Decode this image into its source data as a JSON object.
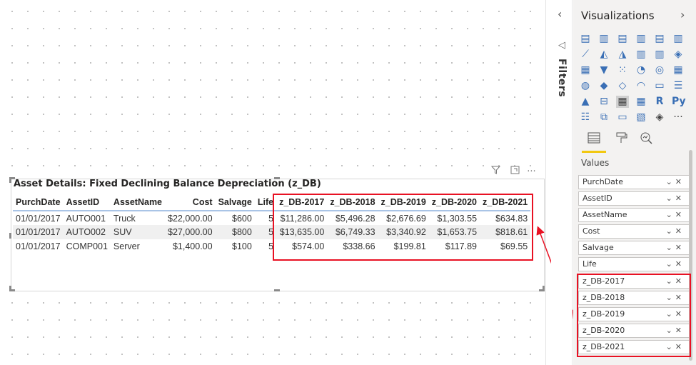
{
  "visual": {
    "title": "Asset Details: Fixed Declining Balance Depreciation (z_DB)",
    "columns": [
      "PurchDate",
      "AssetID",
      "AssetName",
      "Cost",
      "Salvage",
      "Life",
      "z_DB-2017",
      "z_DB-2018",
      "z_DB-2019",
      "z_DB-2020",
      "z_DB-2021"
    ],
    "rows": [
      [
        "01/01/2017",
        "AUTO001",
        "Truck",
        "$22,000.00",
        "$600",
        "5",
        "$11,286.00",
        "$5,496.28",
        "$2,676.69",
        "$1,303.55",
        "$634.83"
      ],
      [
        "01/01/2017",
        "AUTO002",
        "SUV",
        "$27,000.00",
        "$800",
        "5",
        "$13,635.00",
        "$6,749.33",
        "$3,340.92",
        "$1,653.75",
        "$818.61"
      ],
      [
        "01/01/2017",
        "COMP001",
        "Server",
        "$1,400.00",
        "$100",
        "5",
        "$574.00",
        "$338.66",
        "$199.81",
        "$117.89",
        "$69.55"
      ]
    ],
    "header_icons": [
      "filter-icon",
      "focus-mode-icon",
      "more-options-icon"
    ],
    "highlight_color": "#e81123",
    "header_border_color": "#a9c4e6"
  },
  "filters": {
    "label": "Filters",
    "collapse_icon": "chevron-left-icon",
    "funnel_icon": "funnel-icon"
  },
  "viz_pane": {
    "title": "Visualizations",
    "expand_icon": "chevron-right-icon",
    "r_label": "R",
    "py_label": "Py",
    "more_label": "···",
    "values_label": "Values",
    "wells": [
      "PurchDate",
      "AssetID",
      "AssetName",
      "Cost",
      "Salvage",
      "Life",
      "z_DB-2017",
      "z_DB-2018",
      "z_DB-2019",
      "z_DB-2020",
      "z_DB-2021"
    ],
    "accent_color": "#f2c811"
  }
}
